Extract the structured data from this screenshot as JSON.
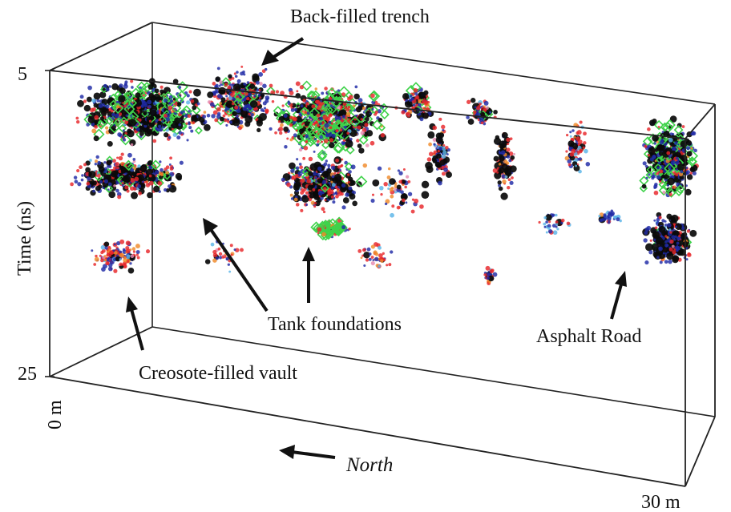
{
  "annotations": {
    "trench": "Back-filled trench",
    "tank": "Tank foundations",
    "vault": "Creosote-filled vault",
    "road": "Asphalt Road"
  },
  "axes": {
    "time_label": "Time (ns)",
    "time_top": "5",
    "time_bottom": "25",
    "dist_start": "0 m",
    "dist_end": "30 m",
    "direction": "North"
  },
  "colors": {
    "black": "#0a0a0a",
    "blue": "#1f2aa6",
    "red": "#e8262a",
    "green": "#3fd24a",
    "orange": "#f08a2a",
    "cyan": "#5ab4e8",
    "pink": "#e58ab0",
    "frame": "#222222"
  }
}
